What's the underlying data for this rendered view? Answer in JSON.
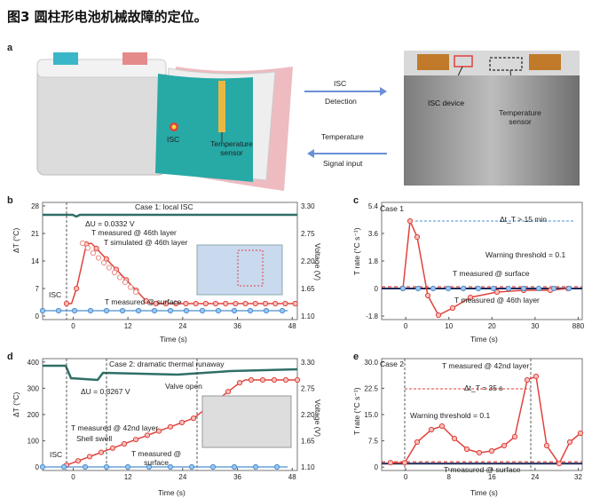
{
  "figure_title": "图3 圆柱形电池机械故障的定位。",
  "panels": {
    "a": "a",
    "b": "b",
    "c": "c",
    "d": "d",
    "e": "e"
  },
  "panel_a": {
    "isc": "ISC",
    "temp_sensor_1": "Temperature",
    "temp_sensor_2": "sensor",
    "arrow_top_1": "ISC",
    "arrow_top_2": "Detection",
    "arrow_bottom_1": "Temperature",
    "arrow_bottom_2": "Signal input",
    "isc_device": "ISC device",
    "photo_sensor_1": "Temperature",
    "photo_sensor_2": "sensor"
  },
  "panel_b": {
    "case": "Case 1: local ISC",
    "du": "ΔU = 0.0332 V",
    "t_meas": "T measured @ 46th layer",
    "t_sim": "T simulated @ 46th layer",
    "t_surf": "T measured @ surface",
    "isc": "ISC",
    "ylabel_left": "ΔT (°C)",
    "ylabel_right": "Voltage (V)",
    "xlabel": "Time (s)",
    "yticks_left": [
      "28",
      "21",
      "14",
      "7",
      "0"
    ],
    "yticks_right": [
      "3.30",
      "2.75",
      "2.20",
      "1.65",
      "1.10"
    ],
    "xticks": [
      "0",
      "12",
      "24",
      "36",
      "48"
    ]
  },
  "panel_c": {
    "case": "Case 1",
    "dt": "Δt_T > 15 min",
    "warn": "Warning threshold = 0.1",
    "t_surf": "T measured @ surface",
    "t_46": "T measured @ 46th layer",
    "ylabel": "T rate (°C s⁻¹)",
    "xlabel": "Time (s)",
    "yticks": [
      "5.4",
      "3.6",
      "1.8",
      "0",
      "-1.8"
    ],
    "xticks": [
      "0",
      "10",
      "20",
      "30",
      "880"
    ]
  },
  "panel_d": {
    "case": "Case 2: dramatic thermal runaway",
    "du": "ΔU = 0.3267 V",
    "valve": "Valve open",
    "t_42": "T measured @ 42nd layer",
    "shell": "Shell swell",
    "t_surf_1": "T measured @",
    "t_surf_2": "surface",
    "isc": "ISC",
    "ylabel_left": "ΔT (°C)",
    "ylabel_right": "Voltage (V)",
    "xlabel": "Time (s)",
    "yticks_left": [
      "400",
      "300",
      "200",
      "100",
      "0"
    ],
    "yticks_right": [
      "3.30",
      "2.75",
      "2.20",
      "1.65",
      "1.10"
    ],
    "xticks": [
      "0",
      "12",
      "24",
      "36",
      "48"
    ]
  },
  "panel_e": {
    "case": "Case 2",
    "t_42": "T measured @ 42nd layer",
    "dt": "Δt_T = 35 s",
    "warn": "Warning threshold = 0.1",
    "t_surf": "T measured @ surface",
    "ylabel": "T rate (°C s⁻¹)",
    "xlabel": "Time (s)",
    "yticks": [
      "30.0",
      "22.5",
      "15.0",
      "7.5",
      "0"
    ],
    "xticks": [
      "0",
      "8",
      "16",
      "24",
      "32"
    ]
  },
  "colors": {
    "red": "#e0433c",
    "blue": "#4a8fd0",
    "teal": "#2f6f66",
    "navy": "#1f2a5a",
    "arrow": "#6b8fd6"
  }
}
